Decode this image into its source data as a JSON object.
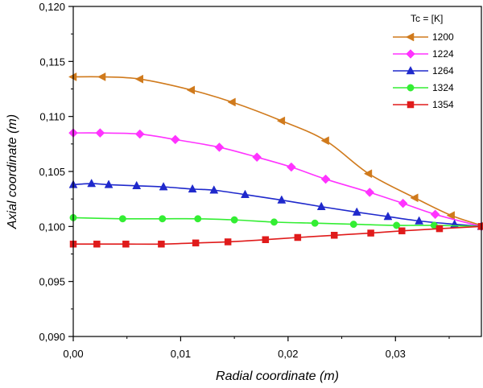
{
  "chart_data": {
    "type": "line",
    "xlabel": "Radial coordinate (m)",
    "ylabel": "Axial coordinate (m)",
    "xlim": [
      0,
      0.038
    ],
    "ylim": [
      0.09,
      0.12
    ],
    "x_ticks": [
      {
        "value": 0,
        "label": "0,00"
      },
      {
        "value": 0.01,
        "label": "0,01"
      },
      {
        "value": 0.02,
        "label": "0,02"
      },
      {
        "value": 0.03,
        "label": "0,03"
      }
    ],
    "y_ticks": [
      {
        "value": 0.09,
        "label": "0,090"
      },
      {
        "value": 0.095,
        "label": "0,095"
      },
      {
        "value": 0.1,
        "label": "0,100"
      },
      {
        "value": 0.105,
        "label": "0,105"
      },
      {
        "value": 0.11,
        "label": "0,110"
      },
      {
        "value": 0.115,
        "label": "0,115"
      },
      {
        "value": 0.12,
        "label": "0,120"
      }
    ],
    "grid": false,
    "legend": {
      "title": "Tc = [K]",
      "position": "top-right"
    },
    "series": [
      {
        "name": "1200",
        "color": "#d07a1c",
        "marker": "triangle-left",
        "x": [
          0.0,
          0.0027,
          0.0062,
          0.011,
          0.0148,
          0.0194,
          0.0235,
          0.0275,
          0.0318,
          0.0352,
          0.038
        ],
        "y": [
          0.1136,
          0.1136,
          0.1134,
          0.1124,
          0.1113,
          0.1096,
          0.1078,
          0.1048,
          0.1026,
          0.101,
          0.1001
        ]
      },
      {
        "name": "1224",
        "color": "#ff33ff",
        "marker": "diamond",
        "x": [
          0.0,
          0.0025,
          0.0062,
          0.0095,
          0.0136,
          0.0171,
          0.0203,
          0.0235,
          0.0276,
          0.0307,
          0.0337,
          0.038
        ],
        "y": [
          0.1085,
          0.1085,
          0.1084,
          0.1079,
          0.1072,
          0.1063,
          0.1054,
          0.1043,
          0.1031,
          0.1021,
          0.1011,
          0.1
        ]
      },
      {
        "name": "1264",
        "color": "#1f29cc",
        "marker": "triangle-up",
        "x": [
          0.0,
          0.0017,
          0.0033,
          0.0059,
          0.0084,
          0.0111,
          0.0131,
          0.016,
          0.0194,
          0.0231,
          0.0264,
          0.0293,
          0.0322,
          0.0355,
          0.038
        ],
        "y": [
          0.1038,
          0.1039,
          0.1038,
          0.1037,
          0.1036,
          0.1034,
          0.1033,
          0.1029,
          0.1024,
          0.1018,
          0.1013,
          0.1009,
          0.1005,
          0.1002,
          0.1
        ]
      },
      {
        "name": "1324",
        "color": "#33ee33",
        "marker": "circle",
        "x": [
          0.0,
          0.0046,
          0.0083,
          0.0116,
          0.015,
          0.0187,
          0.0225,
          0.0261,
          0.0301,
          0.0336,
          0.038
        ],
        "y": [
          0.1008,
          0.1007,
          0.1007,
          0.1007,
          0.1006,
          0.1004,
          0.1003,
          0.1002,
          0.1001,
          0.1001,
          0.1
        ]
      },
      {
        "name": "1354",
        "color": "#e01b1b",
        "marker": "square",
        "x": [
          0.0,
          0.0022,
          0.0049,
          0.0082,
          0.0114,
          0.0144,
          0.0179,
          0.0209,
          0.0243,
          0.0277,
          0.0306,
          0.0341,
          0.038
        ],
        "y": [
          0.0984,
          0.0984,
          0.0984,
          0.0984,
          0.0985,
          0.0986,
          0.0988,
          0.099,
          0.0992,
          0.0994,
          0.0996,
          0.0998,
          0.1
        ]
      }
    ]
  }
}
